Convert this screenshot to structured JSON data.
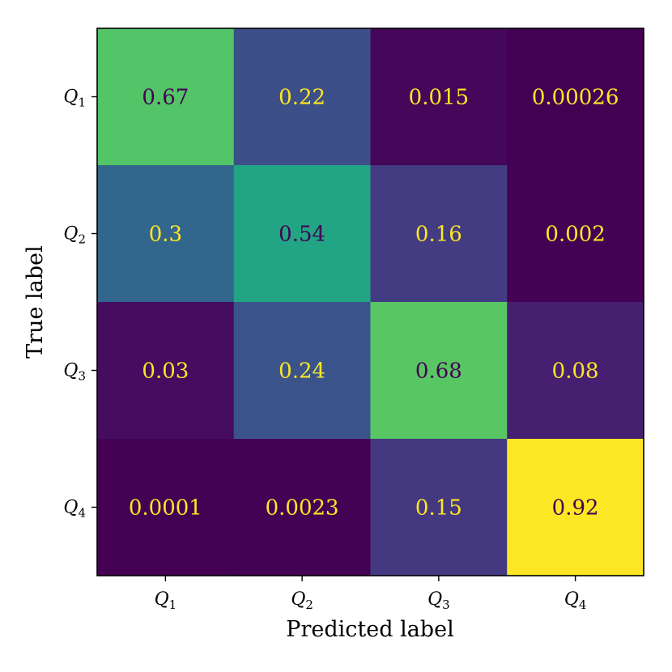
{
  "chart_data": {
    "type": "heatmap",
    "title": "",
    "xlabel": "Predicted label",
    "ylabel": "True label",
    "x_categories": [
      {
        "base": "Q",
        "sub": "1"
      },
      {
        "base": "Q",
        "sub": "2"
      },
      {
        "base": "Q",
        "sub": "3"
      },
      {
        "base": "Q",
        "sub": "4"
      }
    ],
    "y_categories": [
      {
        "base": "Q",
        "sub": "1"
      },
      {
        "base": "Q",
        "sub": "2"
      },
      {
        "base": "Q",
        "sub": "3"
      },
      {
        "base": "Q",
        "sub": "4"
      }
    ],
    "values": [
      [
        0.67,
        0.22,
        0.015,
        0.00026
      ],
      [
        0.3,
        0.54,
        0.16,
        0.002
      ],
      [
        0.03,
        0.24,
        0.68,
        0.08
      ],
      [
        0.0001,
        0.0023,
        0.15,
        0.92
      ]
    ],
    "labels": [
      [
        "0.67",
        "0.22",
        "0.015",
        "0.00026"
      ],
      [
        "0.3",
        "0.54",
        "0.16",
        "0.002"
      ],
      [
        "0.03",
        "0.24",
        "0.68",
        "0.08"
      ],
      [
        "0.0001",
        "0.0023",
        "0.15",
        "0.92"
      ]
    ],
    "colormap": "viridis",
    "vmin": 0.0001,
    "vmax": 0.92,
    "grid": false,
    "colors": {
      "text_on_dark": "#fde725",
      "text_on_light": "#440154",
      "frame": "#000000"
    }
  }
}
